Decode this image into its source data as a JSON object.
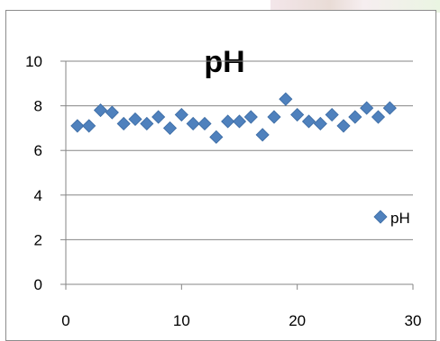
{
  "chart_data": {
    "type": "scatter",
    "title": "pH",
    "xlabel": "",
    "ylabel": "",
    "xlim": [
      0,
      30
    ],
    "ylim": [
      0,
      10
    ],
    "xticks": [
      0,
      10,
      20,
      30
    ],
    "yticks": [
      0,
      2,
      4,
      6,
      8,
      10
    ],
    "grid": "horizontal",
    "legend_position": "right",
    "series": [
      {
        "name": "pH",
        "color": "#4f81bd",
        "marker": "diamond",
        "x": [
          1,
          2,
          3,
          4,
          5,
          6,
          7,
          8,
          9,
          10,
          11,
          12,
          13,
          14,
          15,
          16,
          17,
          18,
          19,
          20,
          21,
          22,
          23,
          24,
          25,
          26,
          27,
          28
        ],
        "y": [
          7.1,
          7.1,
          7.8,
          7.7,
          7.2,
          7.4,
          7.2,
          7.5,
          7.0,
          7.6,
          7.2,
          7.2,
          6.6,
          7.3,
          7.3,
          7.5,
          6.7,
          7.5,
          8.3,
          7.6,
          7.3,
          7.2,
          7.6,
          7.1,
          7.5,
          7.9,
          7.5,
          7.9
        ]
      }
    ]
  }
}
